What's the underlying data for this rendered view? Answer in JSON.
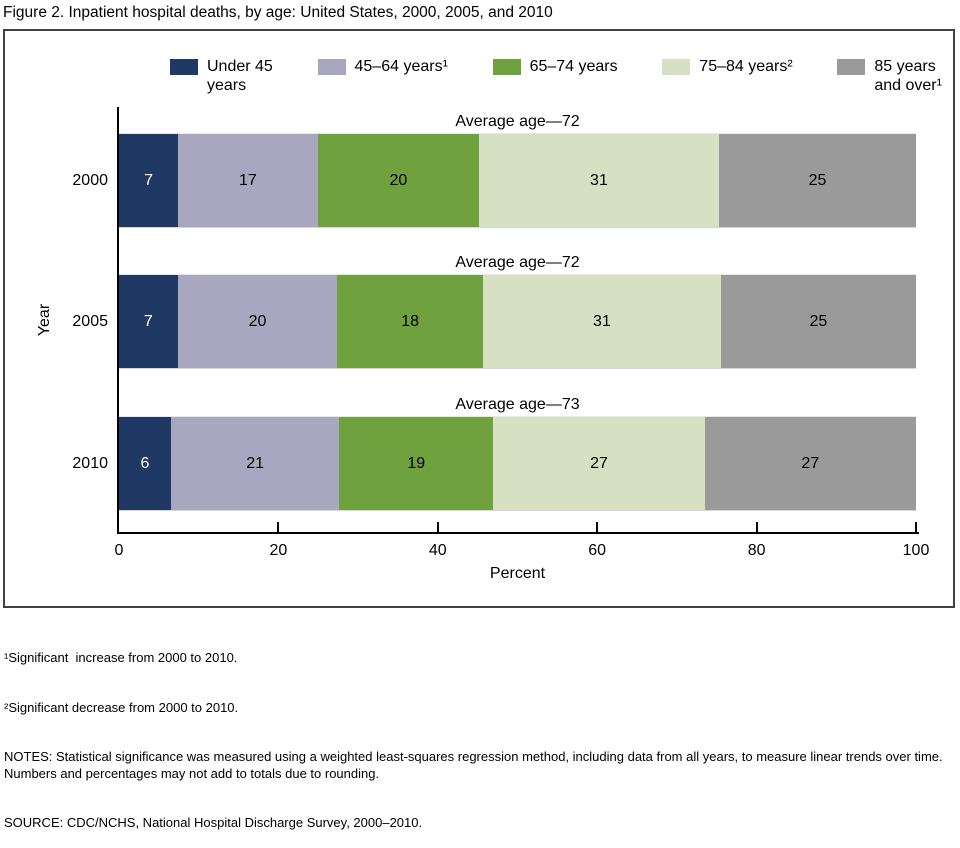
{
  "title": "Figure 2. Inpatient hospital deaths, by age: United States, 2000, 2005, and 2010",
  "chart_data": {
    "type": "bar",
    "orientation": "horizontal-stacked",
    "categories": [
      "2000",
      "2005",
      "2010"
    ],
    "series": [
      {
        "name": "Under 45 years",
        "legend_lines": [
          "Under 45",
          "years"
        ],
        "color": "#1F3864",
        "label_color": "#FFFFFF",
        "values": [
          7,
          7,
          6
        ]
      },
      {
        "name": "45–64 years¹",
        "legend_lines": [
          "45–64 years¹"
        ],
        "color": "#A9A7C0",
        "label_color": "#000000",
        "values": [
          17,
          20,
          21
        ]
      },
      {
        "name": "65–74 years",
        "legend_lines": [
          "65–74 years"
        ],
        "color": "#6FA13F",
        "label_color": "#000000",
        "values": [
          20,
          18,
          19
        ]
      },
      {
        "name": "75–84 years²",
        "legend_lines": [
          "75–84 years²"
        ],
        "color": "#D6E0C3",
        "label_color": "#000000",
        "values": [
          31,
          31,
          27
        ]
      },
      {
        "name": "85 years and over¹",
        "legend_lines": [
          "85 years",
          "and over¹"
        ],
        "color": "#9A9A9A",
        "label_color": "#000000",
        "values": [
          25,
          25,
          27
        ]
      }
    ],
    "bar_annotations": [
      "Average age—72",
      "Average age—72",
      "Average age—73"
    ],
    "xlabel": "Percent",
    "ylabel": "Year",
    "xlim": [
      0,
      100
    ],
    "xticks": [
      0,
      20,
      40,
      60,
      80,
      100
    ],
    "legend_position": "top",
    "grid": false
  },
  "footnotes": [
    "¹Significant  increase from 2000 to 2010.",
    "²Significant decrease from 2000 to 2010.",
    "NOTES: Statistical significance was measured using a weighted least-squares regression method, including data from all years, to measure linear trends over time. Numbers and percentages may not add to totals due to rounding.",
    "SOURCE: CDC/NCHS, National Hospital Discharge Survey, 2000–2010."
  ]
}
